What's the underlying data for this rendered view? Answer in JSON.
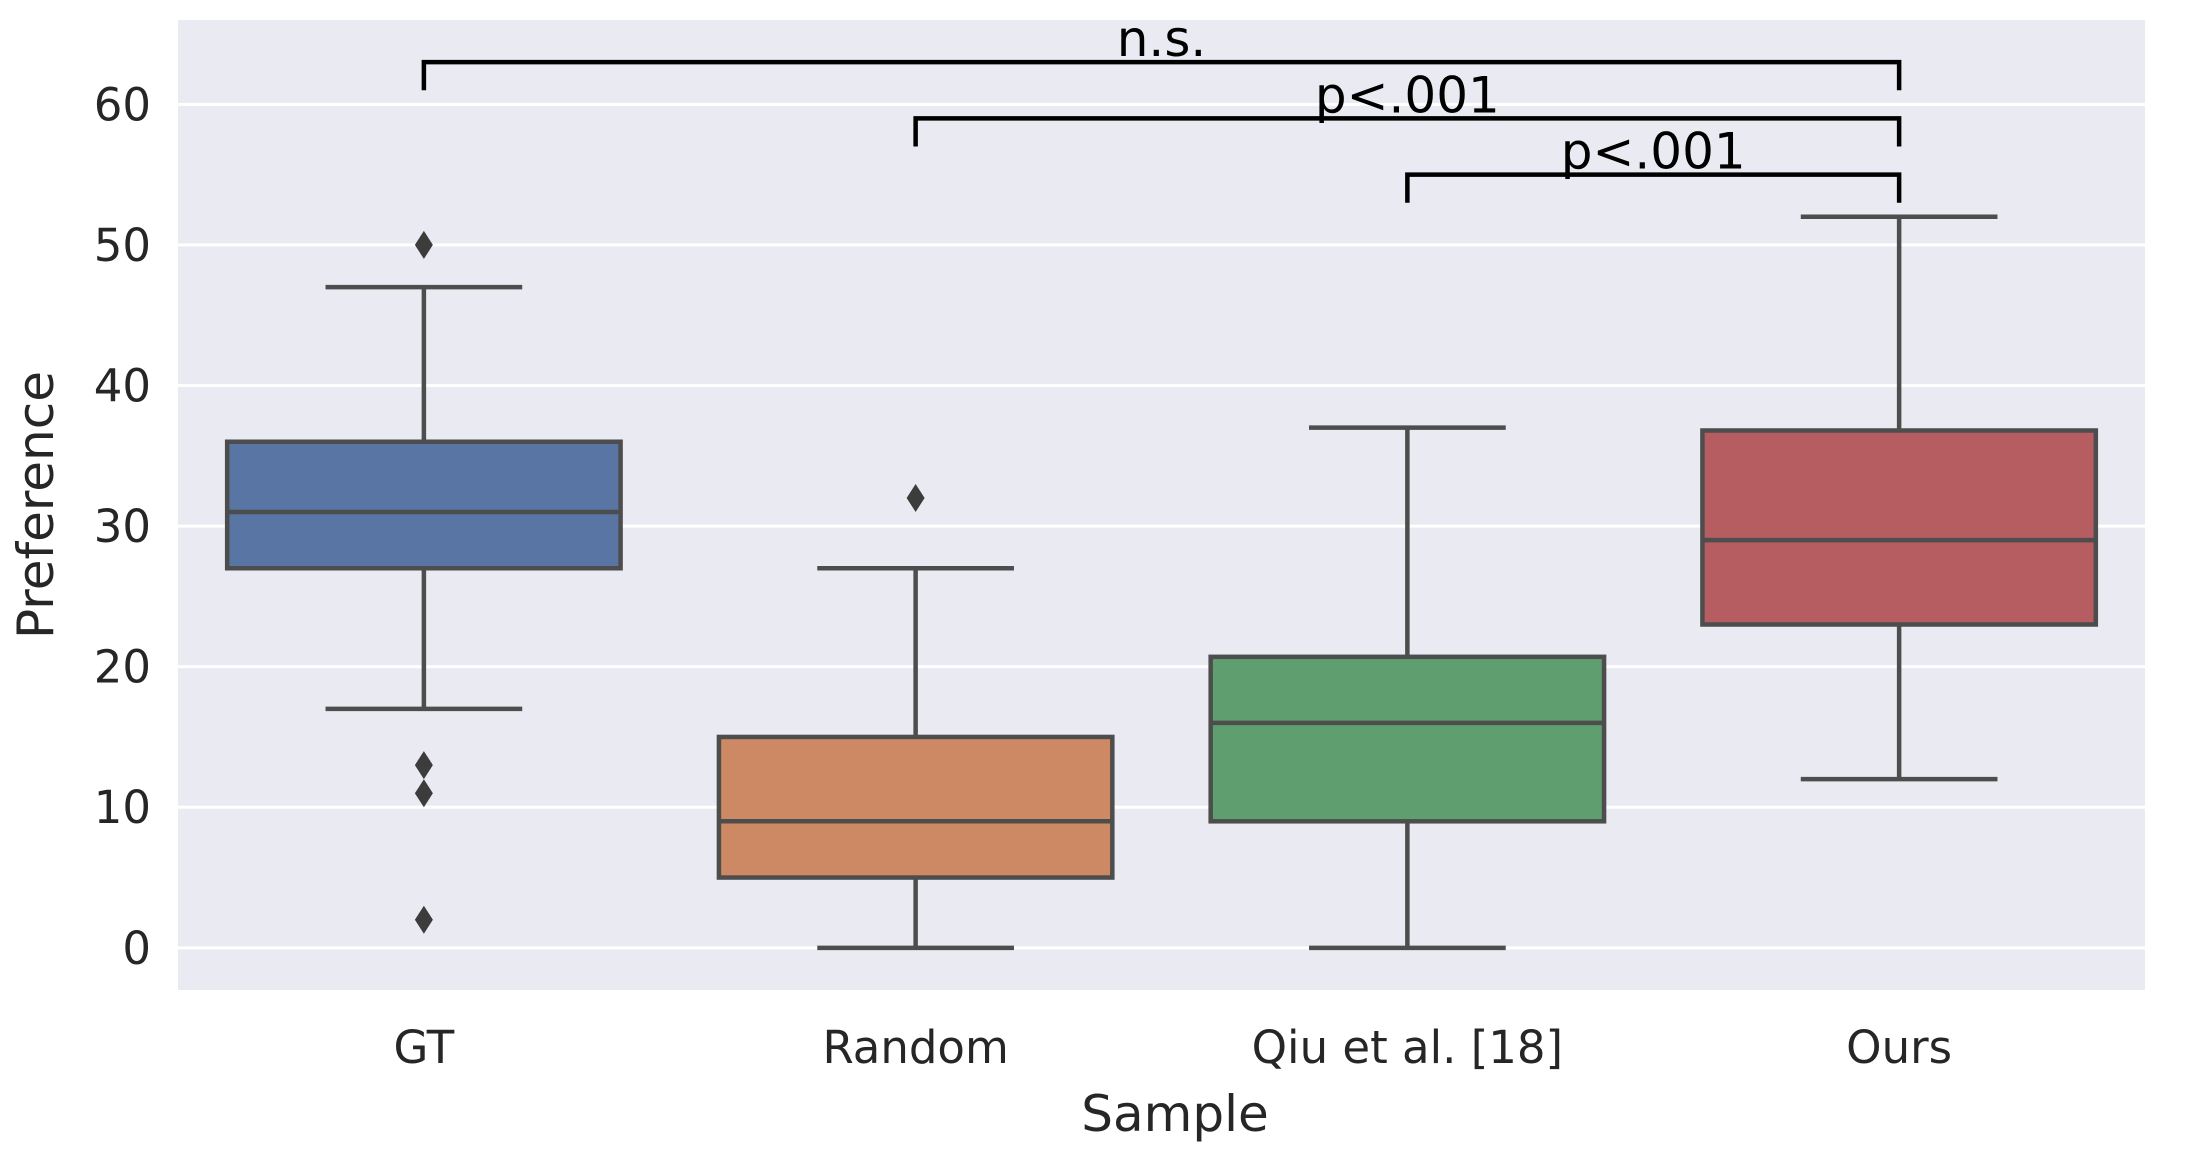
{
  "chart_data": {
    "type": "box",
    "xlabel": "Sample",
    "ylabel": "Preference",
    "ylim": [
      -3,
      66
    ],
    "yticks": [
      0,
      10,
      20,
      30,
      40,
      50,
      60
    ],
    "yticks_text": [
      "0",
      "10",
      "20",
      "30",
      "40",
      "50",
      "60"
    ],
    "grid": true,
    "background": "#eaeaf2",
    "categories": [
      "GT",
      "Random",
      "Qiu et al. [18]",
      "Ours"
    ],
    "boxes": [
      {
        "label": "GT",
        "color": "#5975a4",
        "whisker_low": 17,
        "q1": 27,
        "median": 31,
        "q3": 36,
        "whisker_high": 47,
        "outliers": [
          50,
          13,
          11,
          2
        ]
      },
      {
        "label": "Random",
        "color": "#cc8963",
        "whisker_low": 0,
        "q1": 5,
        "median": 9,
        "q3": 15,
        "whisker_high": 27,
        "outliers": [
          32
        ]
      },
      {
        "label": "Qiu et al. [18]",
        "color": "#5f9e6e",
        "whisker_low": 0,
        "q1": 9,
        "median": 16,
        "q3": 20.7,
        "whisker_high": 37,
        "outliers": []
      },
      {
        "label": "Ours",
        "color": "#b55d60",
        "whisker_low": 12,
        "q1": 23,
        "median": 29,
        "q3": 36.8,
        "whisker_high": 52,
        "outliers": []
      }
    ],
    "annotations": [
      {
        "text": "n.s.",
        "from": "GT",
        "to": "Ours",
        "y": 63,
        "leg_bottom": 61
      },
      {
        "text": "p<.001",
        "from": "Random",
        "to": "Ours",
        "y": 59,
        "leg_bottom": 57
      },
      {
        "text": "p<.001",
        "from": "Qiu et al. [18]",
        "to": "Ours",
        "y": 55,
        "leg_bottom": 53
      }
    ]
  }
}
